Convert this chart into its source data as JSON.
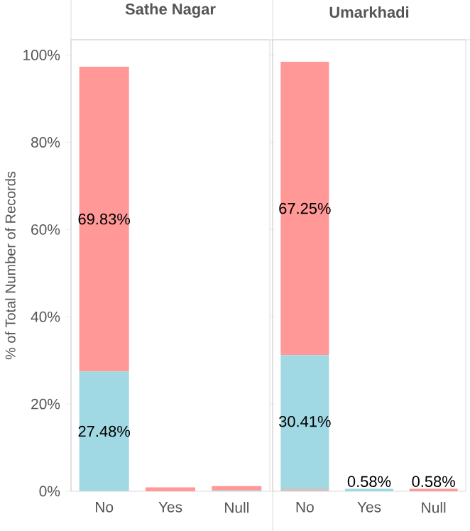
{
  "chart_data": [
    {
      "type": "bar",
      "stacked": true,
      "title": "Sathe Nagar",
      "ylabel": "% of Total Number of Records",
      "categories": [
        "No",
        "Yes",
        "Null"
      ],
      "ylim": [
        0,
        103.5
      ],
      "yticks": [
        {
          "value": 0,
          "label": "0%"
        },
        {
          "value": 20,
          "label": "20%"
        },
        {
          "value": 40,
          "label": "40%"
        },
        {
          "value": 60,
          "label": "60%"
        },
        {
          "value": 80,
          "label": "80%"
        },
        {
          "value": 100,
          "label": "100%"
        }
      ],
      "grid": false,
      "series": [
        {
          "color": "#c8c8c8",
          "values": [
            null,
            null,
            null
          ]
        },
        {
          "color": "#a0d9e3",
          "values": [
            27.48,
            null,
            0.2
          ],
          "value_labels": [
            "27.48%",
            null,
            null
          ]
        },
        {
          "color": "#ff9896",
          "values": [
            69.83,
            0.9,
            1.0
          ],
          "value_labels": [
            "69.83%",
            null,
            null
          ]
        }
      ]
    },
    {
      "type": "bar",
      "stacked": true,
      "title": "Umarkhadi",
      "categories": [
        "No",
        "Yes",
        "Null"
      ],
      "ylim": [
        0,
        103.5
      ],
      "tick_labels": "x",
      "grid": false,
      "series": [
        {
          "color": "#c8c8c8",
          "values": [
            0.8,
            null,
            null
          ]
        },
        {
          "color": "#a0d9e3",
          "values": [
            30.41,
            0.58,
            null
          ],
          "value_labels": [
            "30.41%",
            "0.58%",
            null
          ]
        },
        {
          "color": "#ff9896",
          "values": [
            67.25,
            null,
            0.58
          ],
          "value_labels": [
            "67.25%",
            null,
            "0.58%"
          ]
        }
      ]
    }
  ]
}
